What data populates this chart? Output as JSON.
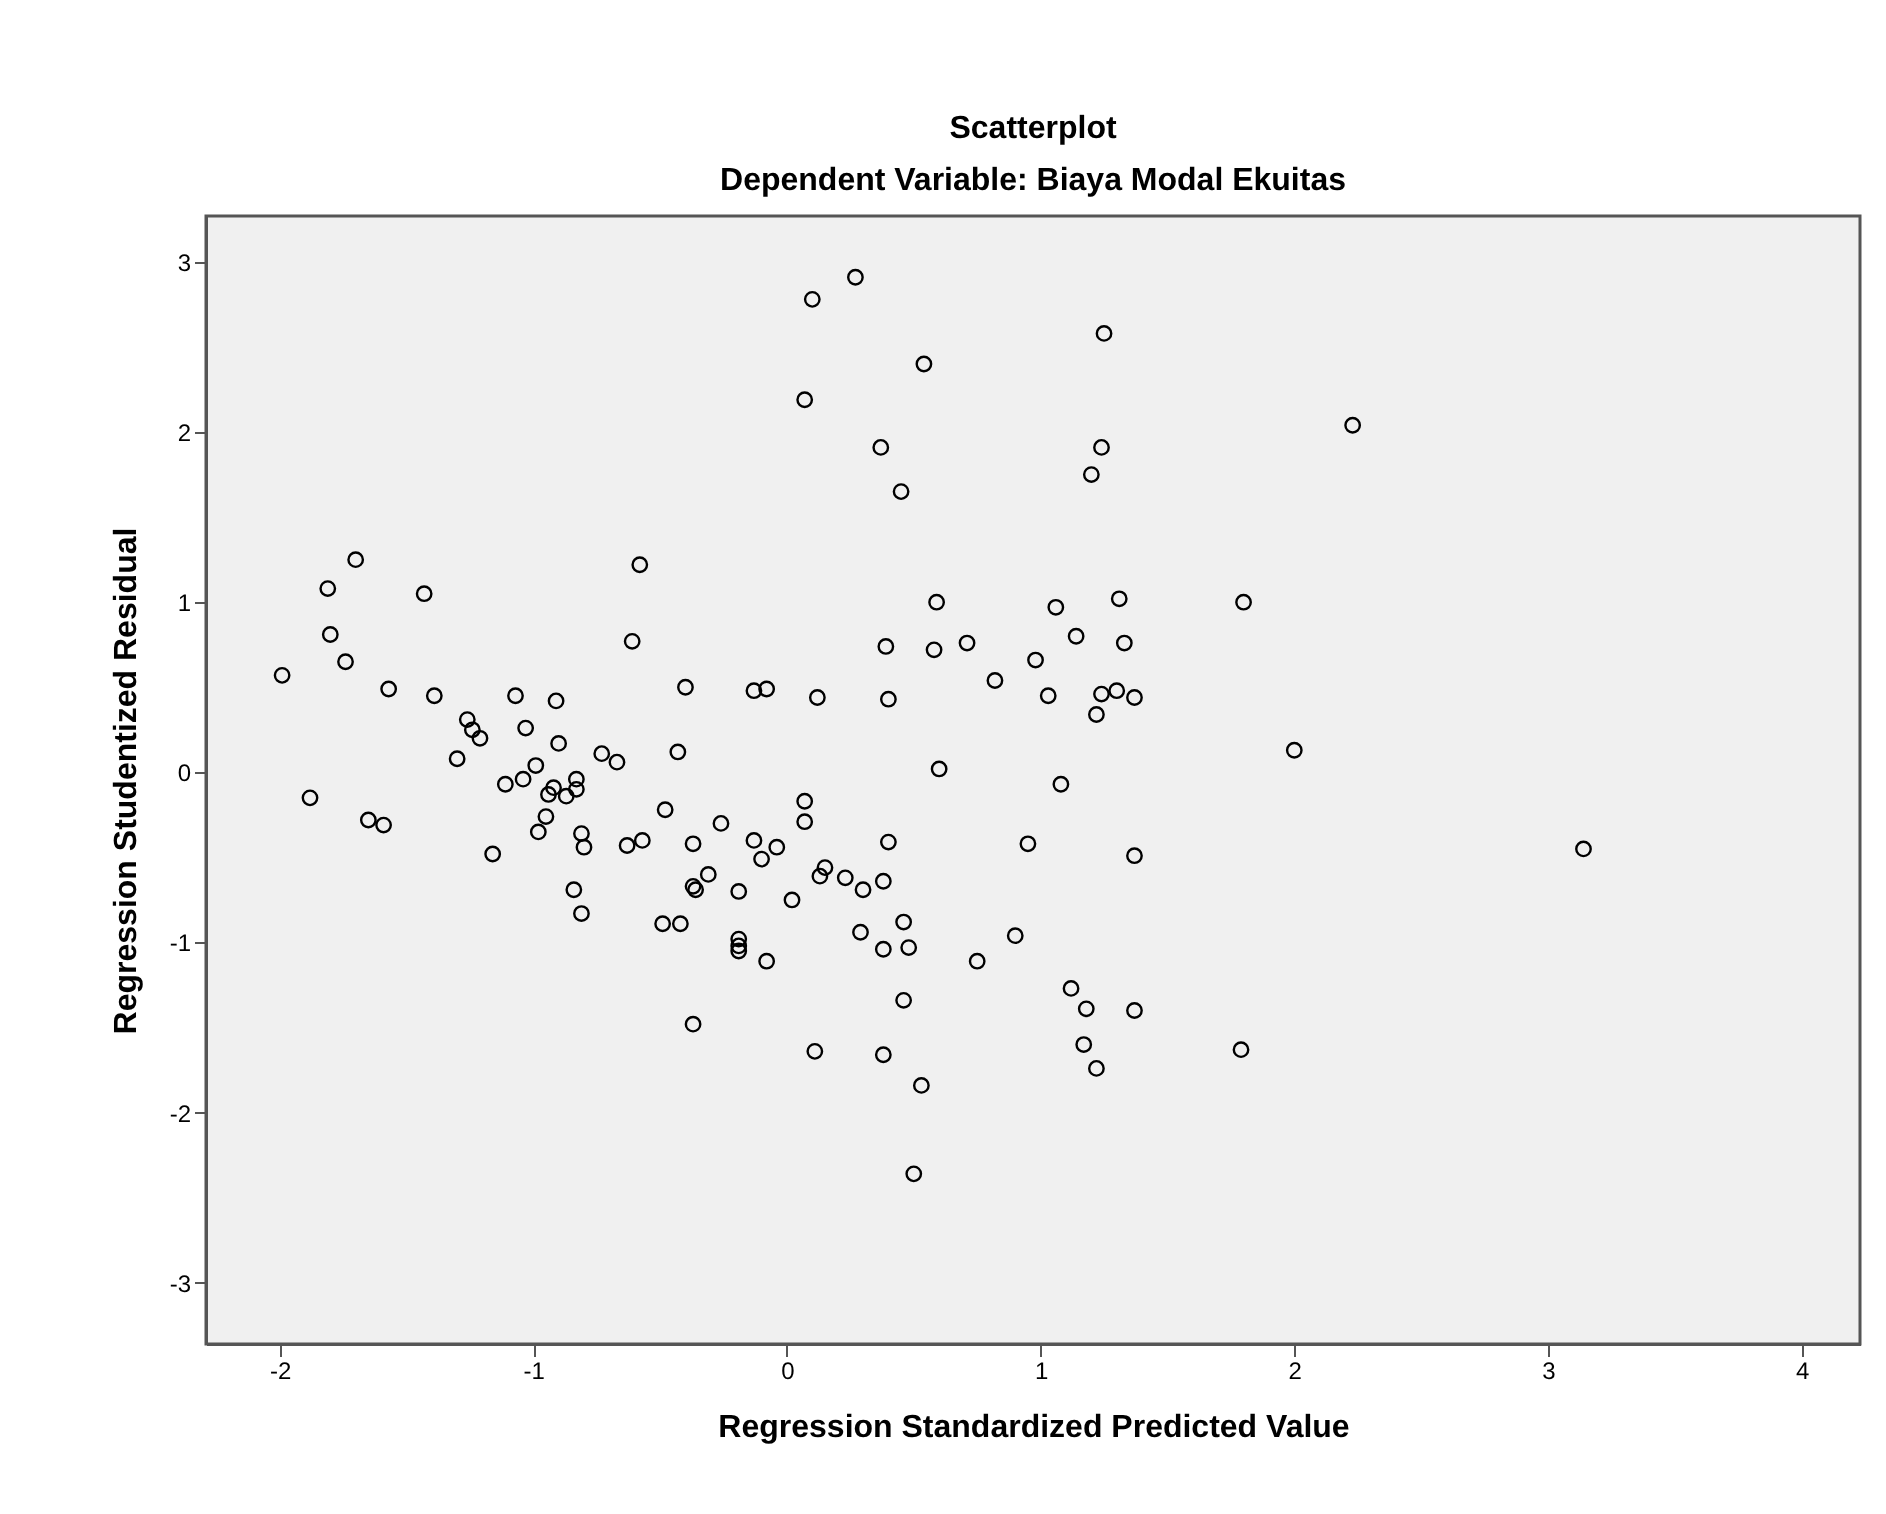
{
  "chart_data": {
    "type": "scatter",
    "title": "Scatterplot",
    "subtitle": "Dependent Variable: Biaya Modal Ekuitas",
    "xlabel": "Regression Standardized Predicted Value",
    "ylabel": "Regression Studentized Residual",
    "xlim": [
      -2.29,
      4.23
    ],
    "ylim": [
      -3.36,
      3.27
    ],
    "xticks": [
      -2,
      -1,
      0,
      1,
      2,
      3,
      4
    ],
    "yticks": [
      -3,
      -2,
      -1,
      0,
      1,
      2,
      3
    ],
    "grid": false,
    "marker": "circle",
    "series": [
      {
        "color": "#000000",
        "x": [
          -1.99,
          -1.88,
          -1.81,
          -1.8,
          -1.74,
          -1.7,
          -1.65,
          -1.59,
          -1.57,
          -1.43,
          -1.39,
          -1.3,
          -1.26,
          -1.24,
          -1.21,
          -1.16,
          -1.11,
          -1.07,
          -1.04,
          -1.03,
          -0.99,
          -0.98,
          -0.95,
          -0.92,
          -0.94,
          -0.91,
          -0.9,
          -0.87,
          -0.83,
          -0.83,
          -0.81,
          -0.8,
          -0.84,
          -0.81,
          -0.73,
          -0.67,
          -0.63,
          -0.61,
          -0.58,
          -0.57,
          -0.48,
          -0.49,
          -0.43,
          -0.42,
          -0.4,
          -0.37,
          -0.36,
          -0.37,
          -0.37,
          -0.31,
          -0.26,
          -0.19,
          -0.19,
          -0.19,
          -0.19,
          -0.13,
          -0.08,
          -0.13,
          -0.1,
          -0.04,
          -0.08,
          0.02,
          0.07,
          0.1,
          0.27,
          0.54,
          1.25,
          0.37,
          0.45,
          1.24,
          1.2,
          2.23,
          0.59,
          1.06,
          1.31,
          1.8,
          0.39,
          0.58,
          0.71,
          1.14,
          1.33,
          0.98,
          0.82,
          0.12,
          0.4,
          1.03,
          1.24,
          1.3,
          1.37,
          1.22,
          0.6,
          1.08,
          2.0,
          0.07,
          0.07,
          0.4,
          0.95,
          1.37,
          0.15,
          0.13,
          0.23,
          0.3,
          0.38,
          0.46,
          0.29,
          0.38,
          0.48,
          0.75,
          0.9,
          0.46,
          1.12,
          1.18,
          1.37,
          1.17,
          1.22,
          1.79,
          0.11,
          0.38,
          0.53,
          0.5,
          3.14
        ],
        "values": [
          0.57,
          -0.15,
          1.08,
          0.81,
          0.65,
          1.25,
          -0.28,
          -0.31,
          0.49,
          1.05,
          0.45,
          0.08,
          0.31,
          0.25,
          0.2,
          -0.48,
          -0.07,
          0.45,
          -0.04,
          0.26,
          0.04,
          -0.35,
          -0.26,
          -0.09,
          -0.13,
          0.42,
          0.17,
          -0.14,
          -0.04,
          -0.1,
          -0.36,
          -0.44,
          -0.69,
          -0.83,
          0.11,
          0.06,
          -0.43,
          0.77,
          1.22,
          -0.4,
          -0.22,
          -0.89,
          0.12,
          -0.89,
          0.5,
          -0.67,
          -0.69,
          -0.42,
          -1.48,
          -0.6,
          -0.3,
          -0.7,
          -0.98,
          -1.02,
          -1.05,
          0.48,
          0.49,
          -0.4,
          -0.51,
          -0.44,
          -1.11,
          -0.75,
          2.19,
          2.78,
          2.91,
          2.4,
          2.58,
          1.91,
          1.65,
          1.91,
          1.75,
          2.04,
          1.0,
          0.97,
          1.02,
          1.0,
          0.74,
          0.72,
          0.76,
          0.8,
          0.76,
          0.66,
          0.54,
          0.44,
          0.43,
          0.45,
          0.46,
          0.48,
          0.44,
          0.34,
          0.02,
          -0.07,
          0.13,
          -0.17,
          -0.29,
          -0.41,
          -0.42,
          -0.49,
          -0.56,
          -0.61,
          -0.62,
          -0.69,
          -0.64,
          -0.88,
          -0.94,
          -1.04,
          -1.03,
          -1.11,
          -0.96,
          -1.34,
          -1.27,
          -1.39,
          -1.4,
          -1.6,
          -1.74,
          -1.63,
          -1.64,
          -1.66,
          -1.84,
          -2.36,
          -0.45
        ]
      }
    ]
  }
}
